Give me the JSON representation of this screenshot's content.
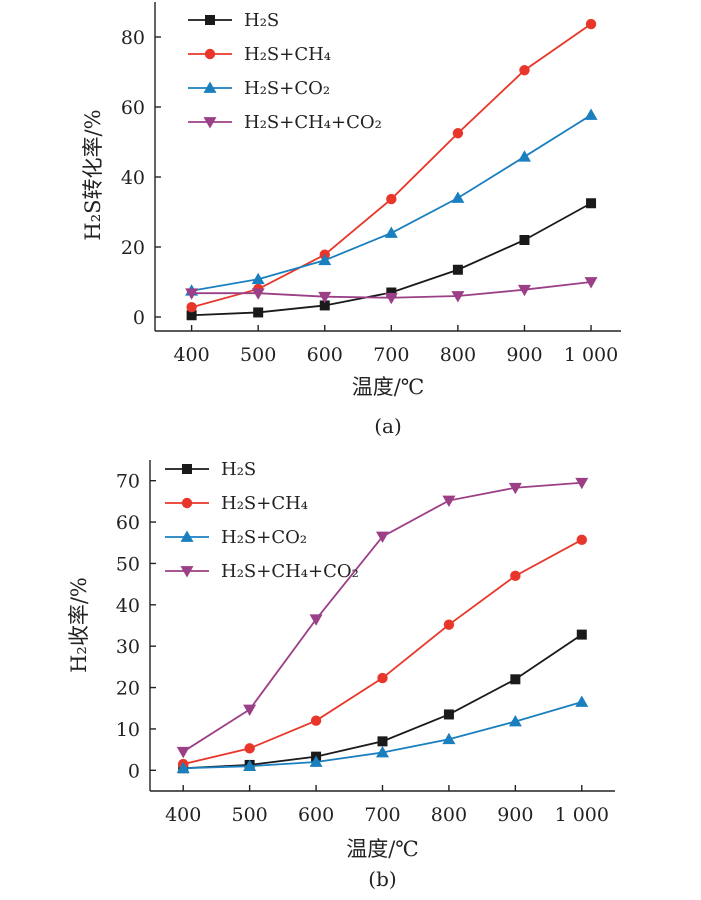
{
  "colors": {
    "h2s": "#1a1a1a",
    "h2s_ch4": "#e8372a",
    "h2s_co2": "#1a7fbf",
    "h2s_ch4_co2": "#9b3f86"
  },
  "chart_data": [
    {
      "type": "line",
      "id": "a",
      "caption": "(a)",
      "xlabel": "温度/℃",
      "ylabel": "H₂S转化率/%",
      "x": [
        400,
        500,
        600,
        700,
        800,
        900,
        1000
      ],
      "x_tick_labels": [
        "400",
        "500",
        "600",
        "700",
        "800",
        "900",
        "1 000"
      ],
      "y_ticks": [
        0,
        20,
        40,
        60,
        80
      ],
      "y_tick_labels": [
        "0",
        "20",
        "40",
        "60",
        "80"
      ],
      "ylim": [
        -4,
        90
      ],
      "xlim": [
        345,
        1045
      ],
      "grid": false,
      "legend": "top-left",
      "series": [
        {
          "name": "H₂S",
          "marker": "square",
          "color_key": "h2s",
          "values": [
            0.5,
            1.3,
            3.3,
            7.0,
            13.5,
            22.0,
            32.5
          ]
        },
        {
          "name": "H₂S+CH₄",
          "marker": "circle",
          "color_key": "h2s_ch4",
          "values": [
            2.8,
            8.0,
            17.8,
            33.7,
            52.5,
            70.5,
            83.7
          ]
        },
        {
          "name": "H₂S+CO₂",
          "marker": "triangle-up",
          "color_key": "h2s_co2",
          "values": [
            7.5,
            10.8,
            16.2,
            24.0,
            34.0,
            45.8,
            57.7
          ]
        },
        {
          "name": "H₂S+CH₄+CO₂",
          "marker": "triangle-down",
          "color_key": "h2s_ch4_co2",
          "values": [
            6.8,
            6.8,
            5.8,
            5.5,
            6.0,
            7.8,
            10.0
          ]
        }
      ]
    },
    {
      "type": "line",
      "id": "b",
      "caption": "(b)",
      "xlabel": "温度/℃",
      "ylabel": "H₂收率/%",
      "x": [
        400,
        500,
        600,
        700,
        800,
        900,
        1000
      ],
      "x_tick_labels": [
        "400",
        "500",
        "600",
        "700",
        "800",
        "900",
        "1 000"
      ],
      "y_ticks": [
        0,
        10,
        20,
        30,
        40,
        50,
        60,
        70
      ],
      "y_tick_labels": [
        "0",
        "10",
        "20",
        "30",
        "40",
        "50",
        "60",
        "70"
      ],
      "ylim": [
        -5,
        75
      ],
      "xlim": [
        350,
        1050
      ],
      "grid": false,
      "legend": "top-left",
      "series": [
        {
          "name": "H₂S",
          "marker": "square",
          "color_key": "h2s",
          "values": [
            0.5,
            1.3,
            3.3,
            7.0,
            13.5,
            22.0,
            32.8
          ]
        },
        {
          "name": "H₂S+CH₄",
          "marker": "circle",
          "color_key": "h2s_ch4",
          "values": [
            1.5,
            5.3,
            12.0,
            22.3,
            35.2,
            47.0,
            55.7
          ]
        },
        {
          "name": "H₂S+CO₂",
          "marker": "triangle-up",
          "color_key": "h2s_co2",
          "values": [
            0.5,
            1.0,
            2.0,
            4.3,
            7.5,
            11.8,
            16.5
          ]
        },
        {
          "name": "H₂S+CH₄+CO₂",
          "marker": "triangle-down",
          "color_key": "h2s_ch4_co2",
          "values": [
            4.5,
            14.7,
            36.5,
            56.5,
            65.2,
            68.3,
            69.5
          ]
        }
      ]
    }
  ]
}
